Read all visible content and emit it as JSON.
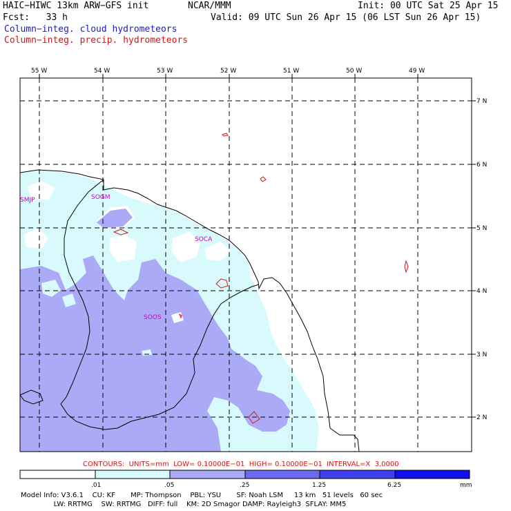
{
  "header": {
    "model_line": "HAIC−HIWC 13km ARW−GFS init",
    "org": "NCAR/MMM",
    "init": "Init: 00 UTC Sat 25 Apr 15",
    "fcst": "Fcst:   33 h",
    "valid": "Valid: 09 UTC Sun 26 Apr 15 (06 LST Sun 26 Apr 15)",
    "field1": "Column−integ. cloud hydrometeors",
    "field2": "Column−integ. precip. hydrometeors"
  },
  "map": {
    "lon_labels": [
      "55 W",
      "54 W",
      "53 W",
      "52 W",
      "51 W",
      "50 W",
      "49 W"
    ],
    "lat_labels": [
      "7 N",
      "6 N",
      "5 N",
      "4 N",
      "3 N",
      "2 N"
    ],
    "stations": [
      "SMJP",
      "SOGM",
      "SOCA",
      "SOOS"
    ],
    "colors": {
      "fill_light": "#d8fafc",
      "fill_mid": "#aaaaf6",
      "fill_dark": "#6a6af0",
      "fill_darker": "#2020ee",
      "contour": "#dd1111",
      "station": "#cc00cc",
      "coast": "#000000"
    }
  },
  "contours_line": "CONTOURS:  UNITS=mm  LOW= 0.10000E−01  HIGH= 0.10000E−01  INTERVAL=X  3.0000",
  "colorbar": {
    "ticks": [
      ".01",
      ".05",
      ".25",
      "1.25",
      "6.25"
    ],
    "units": "mm",
    "colors": [
      "#ffffff",
      "#d8fafc",
      "#aaaaf6",
      "#6a6af0",
      "#4040ee",
      "#1010ee"
    ]
  },
  "footer": {
    "line1": "Model Info: V3.6.1    CU: KF       MP: Thompson    PBL: YSU       SF: Noah LSM     13 km   51 levels   60 sec",
    "line2": "               LW: RRTMG    SW: RRTMG   DIFF: full    KM: 2D Smagor DAMP: Rayleigh3  SFLAY: MM5"
  }
}
